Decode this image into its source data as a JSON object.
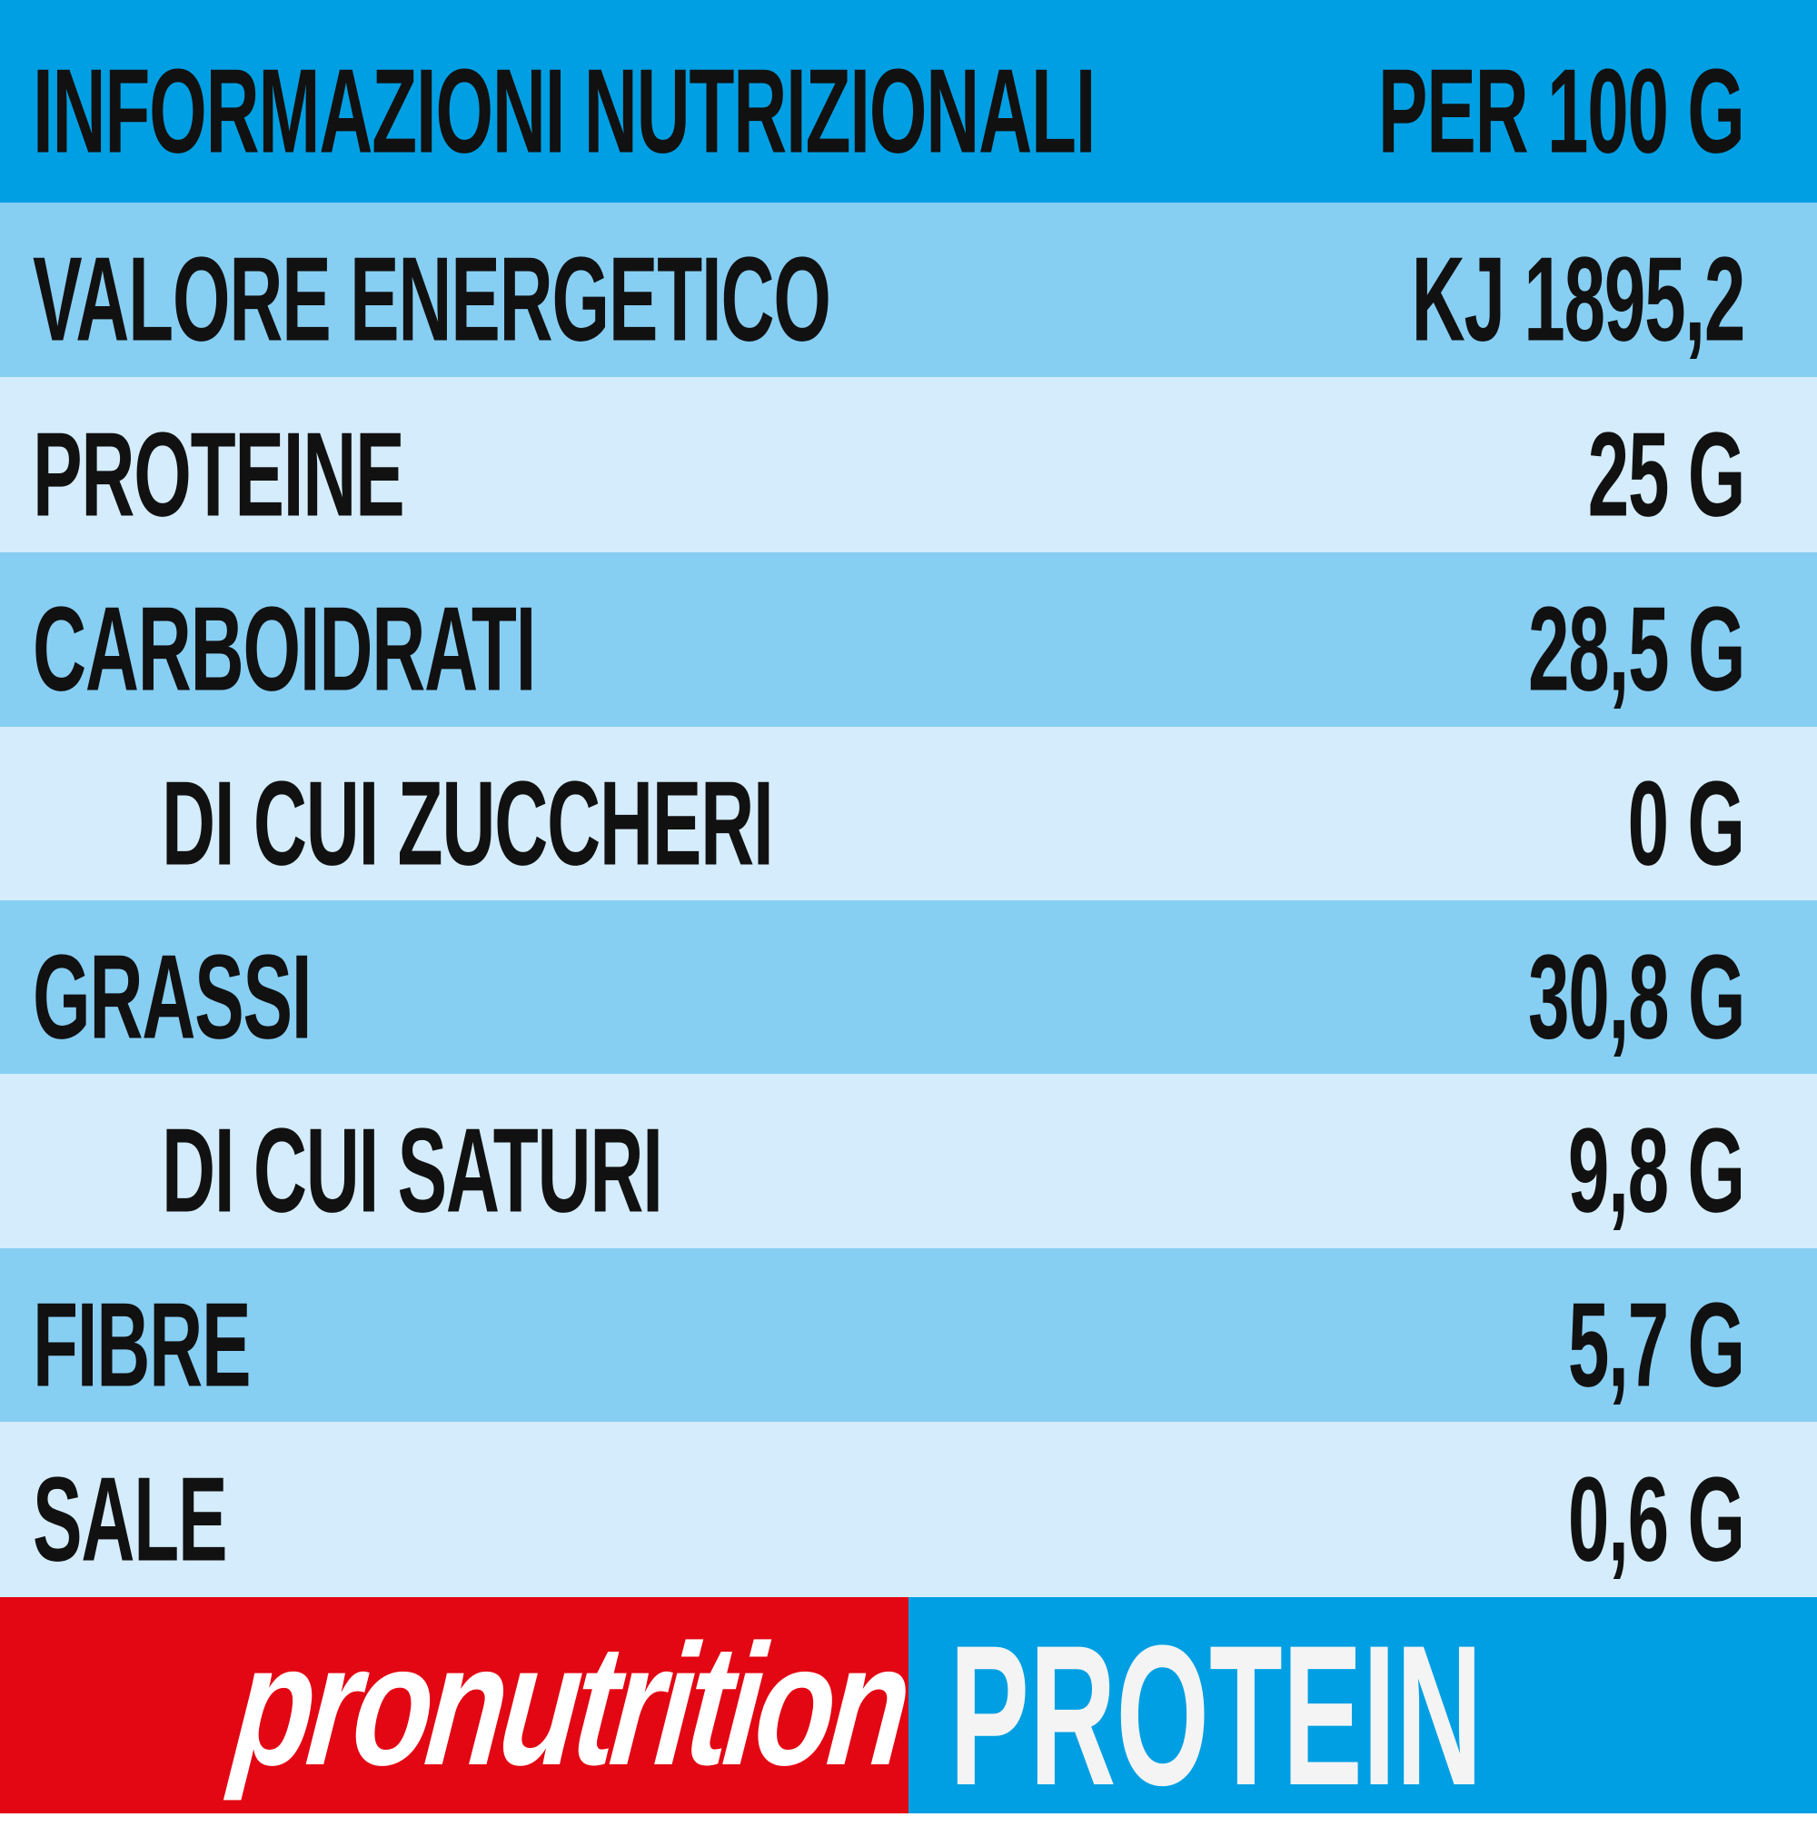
{
  "header": {
    "title": "INFORMAZIONI NUTRIZIONALI",
    "per": "PER 100 G"
  },
  "rows": [
    {
      "label": "VALORE ENERGETICO",
      "value": "KJ 1895,2",
      "indent": false
    },
    {
      "label": "PROTEINE",
      "value": "25 G",
      "indent": false
    },
    {
      "label": "CARBOIDRATI",
      "value": "28,5 G",
      "indent": false
    },
    {
      "label": "DI CUI ZUCCHERI",
      "value": "0 G",
      "indent": true
    },
    {
      "label": "GRASSI",
      "value": "30,8 G",
      "indent": false
    },
    {
      "label": "DI CUI SATURI",
      "value": "9,8 G",
      "indent": true
    },
    {
      "label": "FIBRE",
      "value": "5,7 G",
      "indent": false
    },
    {
      "label": "SALE",
      "value": "0,6 G",
      "indent": false
    }
  ],
  "footer": {
    "brand": "pronutrition",
    "product": "PROTEIN"
  },
  "colors": {
    "header": "#009fe3",
    "row_dark": "#87cef3",
    "row_light": "#d4ecfb",
    "brand_red": "#e30613"
  }
}
